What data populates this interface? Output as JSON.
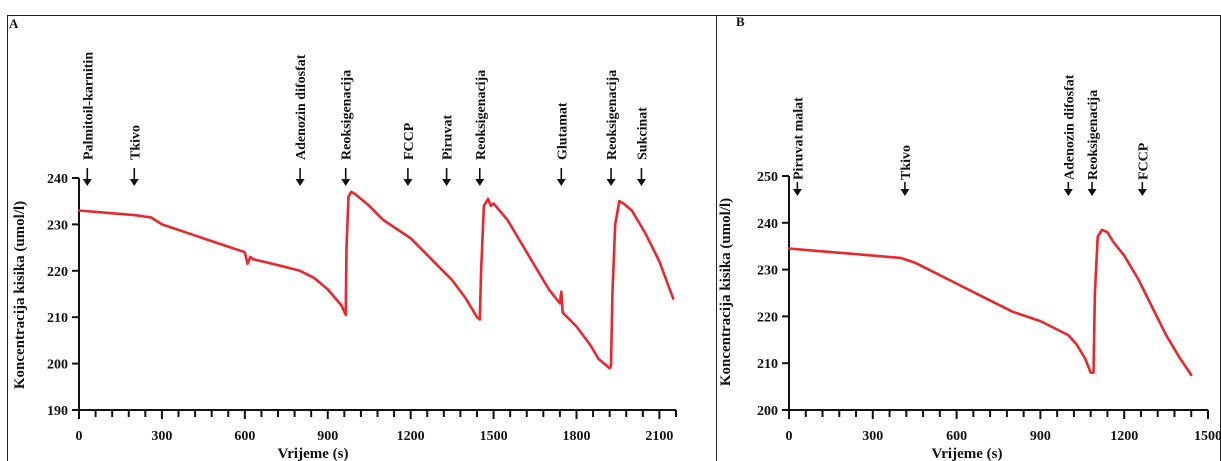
{
  "colors": {
    "series": "#e8282c",
    "axis": "#111111",
    "frame": "#222222"
  },
  "chart_data": [
    {
      "type": "line",
      "panel_label": "A",
      "title": "",
      "xlabel": "Vrijeme (s)",
      "ylabel": "Koncentracija kisika (umol/l)",
      "xlim": [
        0,
        2160
      ],
      "ylim": [
        190,
        240
      ],
      "xticks": [
        0,
        300,
        600,
        900,
        1200,
        1500,
        1800,
        2100
      ],
      "yticks": [
        190,
        200,
        210,
        220,
        230,
        240
      ],
      "grid": false,
      "legend": "none",
      "annotations": [
        {
          "label": "Palmitoil-karnitin",
          "x": 30
        },
        {
          "label": "Tkivo",
          "x": 200
        },
        {
          "label": "Adenozin difosfat",
          "x": 800
        },
        {
          "label": "Reoksigenacija",
          "x": 965
        },
        {
          "label": "FCCP",
          "x": 1190
        },
        {
          "label": "Piruvat",
          "x": 1330
        },
        {
          "label": "Reoksigenacija",
          "x": 1450
        },
        {
          "label": "Glutamat",
          "x": 1745
        },
        {
          "label": "Reoksigenacija",
          "x": 1925
        },
        {
          "label": "Sukcinat",
          "x": 2035
        }
      ],
      "series": [
        {
          "x": [
            0,
            100,
            200,
            260,
            300,
            400,
            500,
            600,
            610,
            620,
            630,
            700,
            800,
            850,
            900,
            950,
            965,
            968,
            975,
            985,
            1000,
            1050,
            1100,
            1150,
            1200,
            1250,
            1300,
            1350,
            1400,
            1440,
            1450,
            1455,
            1465,
            1480,
            1490,
            1500,
            1550,
            1600,
            1650,
            1700,
            1740,
            1745,
            1750,
            1800,
            1850,
            1880,
            1900,
            1920,
            1925,
            1930,
            1940,
            1955,
            1970,
            2000,
            2050,
            2100,
            2150
          ],
          "y": [
            233,
            232.5,
            232,
            231.5,
            230,
            228,
            226,
            224,
            221.5,
            223,
            222.5,
            221.5,
            220,
            218.5,
            216,
            212.5,
            210.5,
            225,
            236,
            237,
            236.5,
            234,
            231,
            229,
            227,
            224,
            221,
            218,
            214,
            210,
            209.5,
            220,
            234,
            235.5,
            234,
            234.5,
            231,
            226,
            221,
            216,
            213,
            215.5,
            211,
            208,
            204,
            201,
            200,
            199,
            199.5,
            215,
            230,
            235,
            234.5,
            233,
            228,
            222,
            214
          ]
        }
      ]
    },
    {
      "type": "line",
      "panel_label": "B",
      "title": "",
      "xlabel": "Vrijeme (s)",
      "ylabel": "Koncentracija kisika (umol/l)",
      "xlim": [
        0,
        1500
      ],
      "ylim": [
        200,
        250
      ],
      "xticks": [
        0,
        300,
        600,
        900,
        1200,
        1500
      ],
      "yticks": [
        200,
        210,
        220,
        230,
        240,
        250
      ],
      "grid": false,
      "legend": "none",
      "annotations": [
        {
          "label": "Piruvat malat",
          "x": 30
        },
        {
          "label": "Tkivo",
          "x": 415
        },
        {
          "label": "Adenozin difosfat",
          "x": 1000
        },
        {
          "label": "Reoksigenacija",
          "x": 1085
        },
        {
          "label": "FCCP",
          "x": 1265
        }
      ],
      "series": [
        {
          "x": [
            0,
            100,
            200,
            300,
            400,
            450,
            500,
            600,
            700,
            800,
            900,
            1000,
            1030,
            1060,
            1080,
            1090,
            1095,
            1105,
            1120,
            1140,
            1160,
            1200,
            1250,
            1300,
            1350,
            1400,
            1440
          ],
          "y": [
            234.5,
            234,
            233.5,
            233,
            232.5,
            231.5,
            230,
            227,
            224,
            221,
            219,
            216,
            214,
            211,
            208,
            208,
            225,
            237,
            238.5,
            238,
            236,
            233,
            228,
            222,
            216,
            211,
            207.5
          ]
        }
      ]
    }
  ]
}
